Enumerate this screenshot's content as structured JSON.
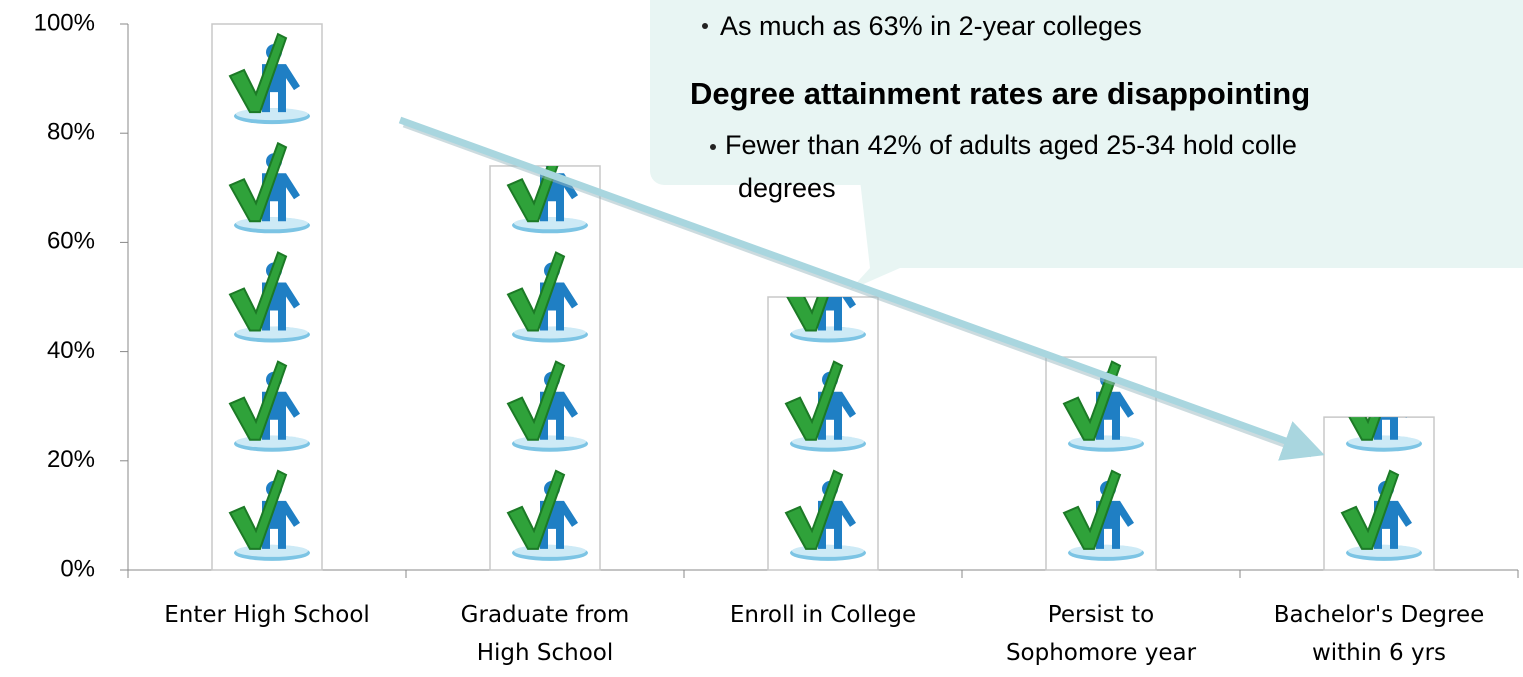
{
  "chart_data": {
    "type": "bar",
    "categories": [
      "Enter High School",
      "Graduate from\nHigh School",
      "Enroll in College",
      "Persist to\nSophomore year",
      "Bachelor's Degree\nwithin 6 yrs"
    ],
    "values": [
      100,
      74,
      50,
      39,
      28
    ],
    "ylim": [
      0,
      100
    ],
    "yticks": [
      {
        "value": 0,
        "label": "0%"
      },
      {
        "value": 20,
        "label": "20%"
      },
      {
        "value": 40,
        "label": "40%"
      },
      {
        "value": 60,
        "label": "60%"
      },
      {
        "value": 80,
        "label": "80%"
      },
      {
        "value": 100,
        "label": "100%"
      }
    ],
    "callout": {
      "bullet_top": "As much as 63% in 2-year colleges",
      "heading": "Degree attainment rates are disappointing",
      "bullet": [
        "Fewer than 42% of adults aged 25-34 hold colle",
        "degrees"
      ]
    }
  }
}
